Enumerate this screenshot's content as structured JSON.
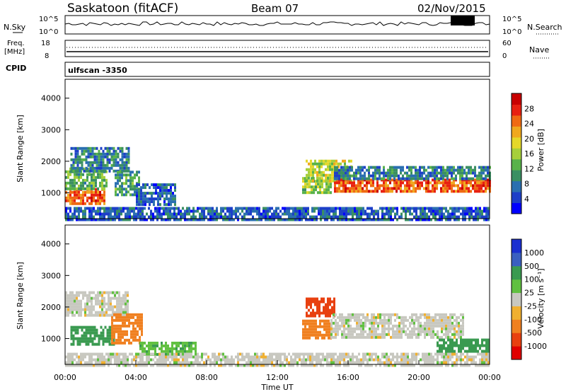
{
  "header": {
    "station": "Saskatoon (fitACF)",
    "beam": "Beam 07",
    "date": "02/Nov/2015"
  },
  "top_panel": {
    "left_label": "N.Sky",
    "right_label": "N.Search",
    "left_ticks": [
      "10^5",
      "10^0"
    ],
    "right_ticks": [
      "10^5",
      "10^0"
    ]
  },
  "freq_panel": {
    "left_label_1": "Freq.",
    "left_label_2": "[MHz]",
    "right_label": "Nave",
    "left_ticks": [
      "18",
      "8"
    ],
    "right_ticks": [
      "60",
      "0"
    ]
  },
  "cpid": {
    "label": "CPID",
    "value": "ulfscan -3350"
  },
  "chart_data": [
    {
      "type": "heatmap",
      "name": "Power",
      "ylabel": "Slant Range [km]",
      "xlabel": "Time UT",
      "xlim": [
        0,
        24
      ],
      "ylim": [
        180,
        4600
      ],
      "yticks": [
        "1000",
        "2000",
        "3000",
        "4000"
      ],
      "xticks": [
        "00:00",
        "04:00",
        "08:00",
        "12:00",
        "16:00",
        "20:00",
        "00:00"
      ],
      "colorbar": {
        "label": "Power [dB]",
        "ticks": [
          "4",
          "8",
          "12",
          "16",
          "20",
          "24",
          "28"
        ],
        "range": [
          0,
          30
        ],
        "colors": [
          "#0000ff",
          "#1d3fc8",
          "#2a6fb0",
          "#3a8f62",
          "#58b24a",
          "#a6cf3a",
          "#e5d82a",
          "#f0a81e",
          "#f06a12",
          "#e82010",
          "#c80000"
        ]
      },
      "regions": [
        {
          "t": [
            0.0,
            2.2
          ],
          "r": [
            700,
            1150
          ],
          "power": 24
        },
        {
          "t": [
            0.0,
            2.4
          ],
          "r": [
            1150,
            1800
          ],
          "power": 12
        },
        {
          "t": [
            0.3,
            3.6
          ],
          "r": [
            1700,
            2450
          ],
          "power": 8
        },
        {
          "t": [
            2.8,
            4.2
          ],
          "r": [
            900,
            1700
          ],
          "power": 10
        },
        {
          "t": [
            4.0,
            6.2
          ],
          "r": [
            600,
            1300
          ],
          "power": 6
        },
        {
          "t": [
            13.4,
            15.0
          ],
          "r": [
            1000,
            1500
          ],
          "power": 14
        },
        {
          "t": [
            13.6,
            16.2
          ],
          "r": [
            1400,
            2050
          ],
          "power": 16
        },
        {
          "t": [
            15.2,
            24.0
          ],
          "r": [
            1050,
            1450
          ],
          "power": 24
        },
        {
          "t": [
            15.2,
            24.0
          ],
          "r": [
            1450,
            1850
          ],
          "power": 8
        },
        {
          "t": [
            0.0,
            24.0
          ],
          "r": [
            180,
            550
          ],
          "power": 6
        }
      ]
    },
    {
      "type": "heatmap",
      "name": "Velocity",
      "ylabel": "Slant Range [km]",
      "xlabel": "Time UT",
      "xlim": [
        0,
        24
      ],
      "ylim": [
        180,
        4600
      ],
      "yticks": [
        "1000",
        "2000",
        "3000",
        "4000"
      ],
      "xticks": [
        "00:00",
        "04:00",
        "08:00",
        "12:00",
        "16:00",
        "20:00",
        "00:00"
      ],
      "colorbar": {
        "label": "Velocity [m s⁻¹]",
        "ticks": [
          "1000",
          "500",
          "100",
          "25",
          "-25",
          "-100",
          "-500",
          "-1000"
        ],
        "colors": [
          "#1a2fd0",
          "#3a5fc0",
          "#3a9a50",
          "#60c040",
          "#c8c8c0",
          "#f0b030",
          "#f08020",
          "#e84010",
          "#e00000"
        ]
      },
      "regions": [
        {
          "t": [
            0.0,
            3.6
          ],
          "r": [
            1700,
            2500
          ],
          "velocity": 0
        },
        {
          "t": [
            0.3,
            2.8
          ],
          "r": [
            800,
            1400
          ],
          "velocity": 150
        },
        {
          "t": [
            2.6,
            4.4
          ],
          "r": [
            900,
            1800
          ],
          "velocity": -200
        },
        {
          "t": [
            4.2,
            7.4
          ],
          "r": [
            500,
            900
          ],
          "velocity": 80
        },
        {
          "t": [
            13.4,
            15.0
          ],
          "r": [
            1000,
            1600
          ],
          "velocity": -300
        },
        {
          "t": [
            13.6,
            15.2
          ],
          "r": [
            1700,
            2300
          ],
          "velocity": -700
        },
        {
          "t": [
            15.0,
            22.5
          ],
          "r": [
            1050,
            1800
          ],
          "velocity": 0
        },
        {
          "t": [
            21.0,
            24.0
          ],
          "r": [
            600,
            1000
          ],
          "velocity": 150
        },
        {
          "t": [
            0.0,
            24.0
          ],
          "r": [
            180,
            550
          ],
          "velocity": 0
        }
      ]
    }
  ]
}
